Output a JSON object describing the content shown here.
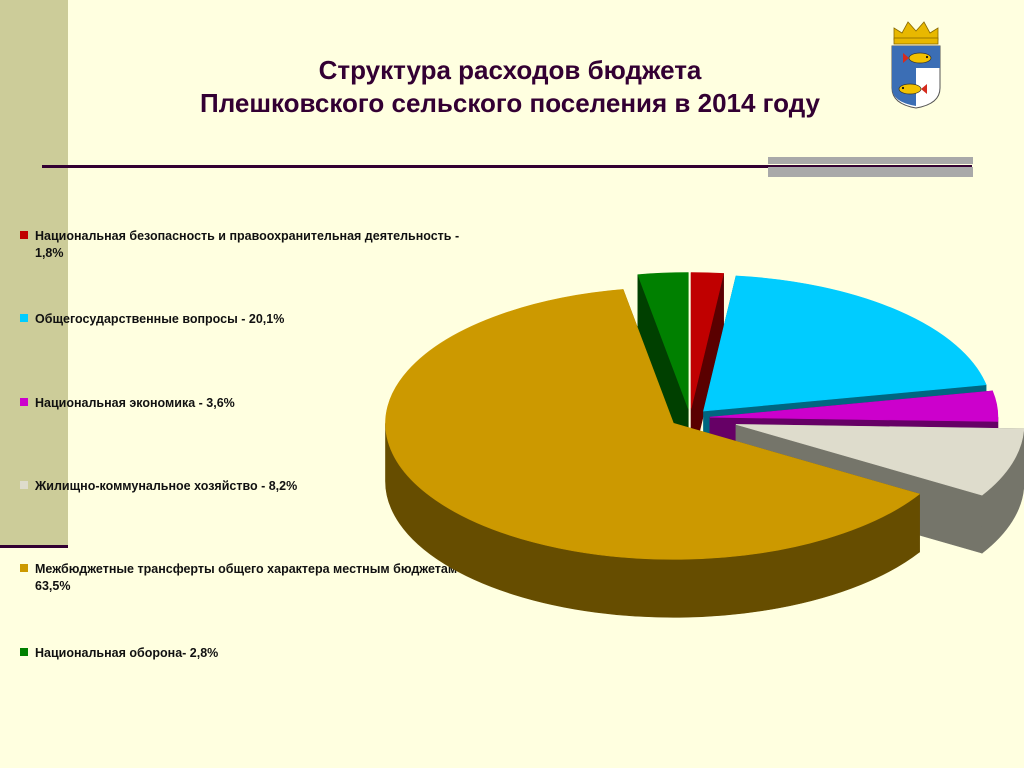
{
  "slide": {
    "title_line1": "Структура расходов бюджета",
    "title_line2": "Плешковского сельского поселения в 2014 году"
  },
  "chart_data": {
    "type": "pie",
    "title": "",
    "slices": [
      {
        "label": "Национальная безопасность и правоохранительная деятельность - 1,8%",
        "value": 1.8,
        "color": "#C00000",
        "dark": "#5A0000",
        "exploded": false
      },
      {
        "label": "Общегосударственные вопросы - 20,1%",
        "value": 20.1,
        "color": "#00CCFF",
        "dark": "#006680",
        "exploded": false
      },
      {
        "label": "Национальная экономика - 3,6%",
        "value": 3.6,
        "color": "#CC00CC",
        "dark": "#660066",
        "exploded": false
      },
      {
        "label": "Жилищно-коммунальное хозяйство - 8,2%",
        "value": 8.2,
        "color": "#DEDCCC",
        "dark": "#75756A",
        "exploded": true
      },
      {
        "label": "Межбюджетные трансферты общего характера местным бюджетам - 63,5%",
        "value": 63.5,
        "color": "#CC9900",
        "dark": "#664D00",
        "exploded": false
      },
      {
        "label": "Национальная оборона- 2,8%",
        "value": 2.8,
        "color": "#008000",
        "dark": "#004000",
        "exploded": false
      }
    ],
    "legend_position": "left",
    "style": "3d-exploded"
  },
  "emblem": {
    "icon": "coat-of-arms-icon",
    "colors": [
      "#3B6EB5",
      "#F2C200",
      "#D52B1E",
      "#FFFFFF"
    ]
  }
}
